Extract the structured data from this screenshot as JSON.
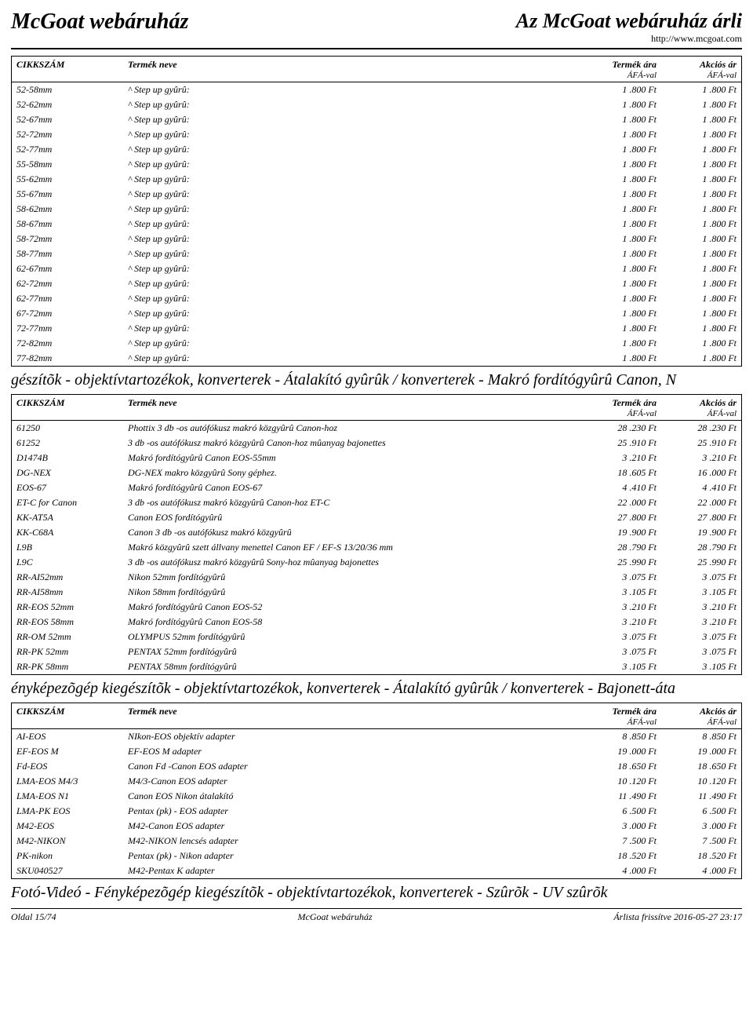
{
  "header": {
    "site_title": "McGoat webáruház",
    "right_title": "Az McGoat webáruház árli",
    "url": "http://www.mcgoat.com"
  },
  "columns": {
    "sku": "CIKKSZÁM",
    "name": "Termék neve",
    "price": "Termék ára",
    "sale": "Akciós ár",
    "afa": "ÁFÁ-val"
  },
  "table1_rows": [
    {
      "sku": "52-58mm",
      "name": "^ Step up gyûrû:",
      "price": "1 .800 Ft",
      "sale": "1 .800 Ft"
    },
    {
      "sku": "52-62mm",
      "name": "^ Step up gyûrû:",
      "price": "1 .800 Ft",
      "sale": "1 .800 Ft"
    },
    {
      "sku": "52-67mm",
      "name": "^ Step up gyûrû:",
      "price": "1 .800 Ft",
      "sale": "1 .800 Ft"
    },
    {
      "sku": "52-72mm",
      "name": "^ Step up gyûrû:",
      "price": "1 .800 Ft",
      "sale": "1 .800 Ft"
    },
    {
      "sku": "52-77mm",
      "name": "^ Step up gyûrû:",
      "price": "1 .800 Ft",
      "sale": "1 .800 Ft"
    },
    {
      "sku": "55-58mm",
      "name": "^ Step up gyûrû:",
      "price": "1 .800 Ft",
      "sale": "1 .800 Ft"
    },
    {
      "sku": "55-62mm",
      "name": "^ Step up gyûrû:",
      "price": "1 .800 Ft",
      "sale": "1 .800 Ft"
    },
    {
      "sku": "55-67mm",
      "name": "^ Step up gyûrû:",
      "price": "1 .800 Ft",
      "sale": "1 .800 Ft"
    },
    {
      "sku": "58-62mm",
      "name": "^ Step up gyûrû:",
      "price": "1 .800 Ft",
      "sale": "1 .800 Ft"
    },
    {
      "sku": "58-67mm",
      "name": "^ Step up gyûrû:",
      "price": "1 .800 Ft",
      "sale": "1 .800 Ft"
    },
    {
      "sku": "58-72mm",
      "name": "^ Step up gyûrû:",
      "price": "1 .800 Ft",
      "sale": "1 .800 Ft"
    },
    {
      "sku": "58-77mm",
      "name": "^ Step up gyûrû:",
      "price": "1 .800 Ft",
      "sale": "1 .800 Ft"
    },
    {
      "sku": "62-67mm",
      "name": "^ Step up gyûrû:",
      "price": "1 .800 Ft",
      "sale": "1 .800 Ft"
    },
    {
      "sku": "62-72mm",
      "name": "^ Step up gyûrû:",
      "price": "1 .800 Ft",
      "sale": "1 .800 Ft"
    },
    {
      "sku": "62-77mm",
      "name": "^ Step up gyûrû:",
      "price": "1 .800 Ft",
      "sale": "1 .800 Ft"
    },
    {
      "sku": "67-72mm",
      "name": "^ Step up gyûrû:",
      "price": "1 .800 Ft",
      "sale": "1 .800 Ft"
    },
    {
      "sku": "72-77mm",
      "name": "^ Step up gyûrû:",
      "price": "1 .800 Ft",
      "sale": "1 .800 Ft"
    },
    {
      "sku": "72-82mm",
      "name": "^ Step up gyûrû:",
      "price": "1 .800 Ft",
      "sale": "1 .800 Ft"
    },
    {
      "sku": "77-82mm",
      "name": "^ Step up gyûrû:",
      "price": "1 .800 Ft",
      "sale": "1 .800 Ft"
    }
  ],
  "section2_title": "gészítõk - objektívtartozékok, konverterek - Átalakító gyûrûk / konverterek - Makró fordítógyûrû Canon, N",
  "table2_rows": [
    {
      "sku": "61250",
      "name": "Phottix 3 db -os autófókusz makró közgyûrû Canon-hoz",
      "price": "28 .230 Ft",
      "sale": "28 .230 Ft"
    },
    {
      "sku": "61252",
      "name": "3 db -os autófókusz makró közgyûrû Canon-hoz mûanyag bajonettes",
      "price": "25 .910 Ft",
      "sale": "25 .910 Ft"
    },
    {
      "sku": "D1474B",
      "name": "Makró fordítógyûrû Canon EOS-55mm",
      "price": "3 .210 Ft",
      "sale": "3 .210 Ft"
    },
    {
      "sku": "DG-NEX",
      "name": "DG-NEX makro közgyûrû Sony géphez.",
      "price": "18 .605 Ft",
      "sale": "16 .000 Ft"
    },
    {
      "sku": "EOS-67",
      "name": "Makró fordítógyûrû Canon EOS-67",
      "price": "4 .410 Ft",
      "sale": "4 .410 Ft"
    },
    {
      "sku": "ET-C for Canon",
      "name": "3 db -os autófókusz makró közgyûrû Canon-hoz  ET-C",
      "price": "22 .000 Ft",
      "sale": "22 .000 Ft"
    },
    {
      "sku": "KK-AT5A",
      "name": "Canon EOS fordítógyûrû",
      "price": "27 .800 Ft",
      "sale": "27 .800 Ft"
    },
    {
      "sku": "KK-C68A",
      "name": "Canon 3 db -os autófókusz makró közgyûrû",
      "price": "19 .900 Ft",
      "sale": "19 .900 Ft"
    },
    {
      "sku": "L9B",
      "name": "Makró közgyûrû szett állvany menettel Canon EF / EF-S  13/20/36 mm",
      "price": "28 .790 Ft",
      "sale": "28 .790 Ft"
    },
    {
      "sku": "L9C",
      "name": "3 db -os autófókusz makró közgyûrû Sony-hoz mûanyag bajonettes",
      "price": "25 .990 Ft",
      "sale": "25 .990 Ft"
    },
    {
      "sku": "RR-AI52mm",
      "name": "Nikon 52mm fordítógyûrû",
      "price": "3 .075 Ft",
      "sale": "3 .075 Ft"
    },
    {
      "sku": "RR-AI58mm",
      "name": "Nikon 58mm fordítógyûrû",
      "price": "3 .105 Ft",
      "sale": "3 .105 Ft"
    },
    {
      "sku": "RR-EOS 52mm",
      "name": "Makró fordítógyûrû Canon EOS-52",
      "price": "3 .210 Ft",
      "sale": "3 .210 Ft"
    },
    {
      "sku": "RR-EOS 58mm",
      "name": "Makró fordítógyûrû Canon EOS-58",
      "price": "3 .210 Ft",
      "sale": "3 .210 Ft"
    },
    {
      "sku": "RR-OM 52mm",
      "name": "OLYMPUS  52mm fordítógyûrû",
      "price": "3 .075 Ft",
      "sale": "3 .075 Ft"
    },
    {
      "sku": "RR-PK 52mm",
      "name": "PENTAX  52mm fordítógyûrû",
      "price": "3 .075 Ft",
      "sale": "3 .075 Ft"
    },
    {
      "sku": "RR-PK 58mm",
      "name": "PENTAX  58mm fordítógyûrû",
      "price": "3 .105 Ft",
      "sale": "3 .105 Ft"
    }
  ],
  "section3_title": "ényképezõgép kiegészítõk - objektívtartozékok, konverterek - Átalakító gyûrûk / konverterek - Bajonett-áta",
  "table3_rows": [
    {
      "sku": "AI-EOS",
      "name": "NIkon-EOS objektív adapter",
      "price": "8 .850 Ft",
      "sale": "8 .850 Ft"
    },
    {
      "sku": "EF-EOS M",
      "name": "EF-EOS M adapter",
      "price": "19 .000 Ft",
      "sale": "19 .000 Ft"
    },
    {
      "sku": "Fd-EOS",
      "name": "Canon Fd -Canon EOS adapter",
      "price": "18 .650 Ft",
      "sale": "18 .650 Ft"
    },
    {
      "sku": "LMA-EOS M4/3",
      "name": "M4/3-Canon EOS adapter",
      "price": "10 .120 Ft",
      "sale": "10 .120 Ft"
    },
    {
      "sku": "LMA-EOS N1",
      "name": "Canon EOS Nikon átalakító",
      "price": "11 .490 Ft",
      "sale": "11 .490 Ft"
    },
    {
      "sku": "LMA-PK EOS",
      "name": "Pentax (pk) - EOS adapter",
      "price": "6 .500 Ft",
      "sale": "6 .500 Ft"
    },
    {
      "sku": "M42-EOS",
      "name": "M42-Canon EOS adapter",
      "price": "3 .000 Ft",
      "sale": "3 .000 Ft"
    },
    {
      "sku": "M42-NIKON",
      "name": "M42-NIKON lencsés adapter",
      "price": "7 .500 Ft",
      "sale": "7 .500 Ft"
    },
    {
      "sku": "PK-nikon",
      "name": "Pentax (pk) - Nikon adapter",
      "price": "18 .520 Ft",
      "sale": "18 .520 Ft"
    },
    {
      "sku": "SKU040527",
      "name": "M42-Pentax K adapter",
      "price": "4 .000 Ft",
      "sale": "4 .000 Ft"
    }
  ],
  "section4_title": "Fotó-Videó - Fényképezõgép kiegészítõk - objektívtartozékok, konverterek - Szûrõk - UV szûrõk",
  "footer": {
    "page": "Oldal 15/74",
    "center": "McGoat webáruház",
    "updated": "Árlista frissítve 2016-05-27 23:17"
  },
  "style": {
    "font_family": "Times New Roman",
    "header_fontsize": 28,
    "section_fontsize": 20,
    "table_fontsize": 12,
    "border_color": "#000000",
    "background_color": "#ffffff",
    "text_color": "#000000"
  }
}
